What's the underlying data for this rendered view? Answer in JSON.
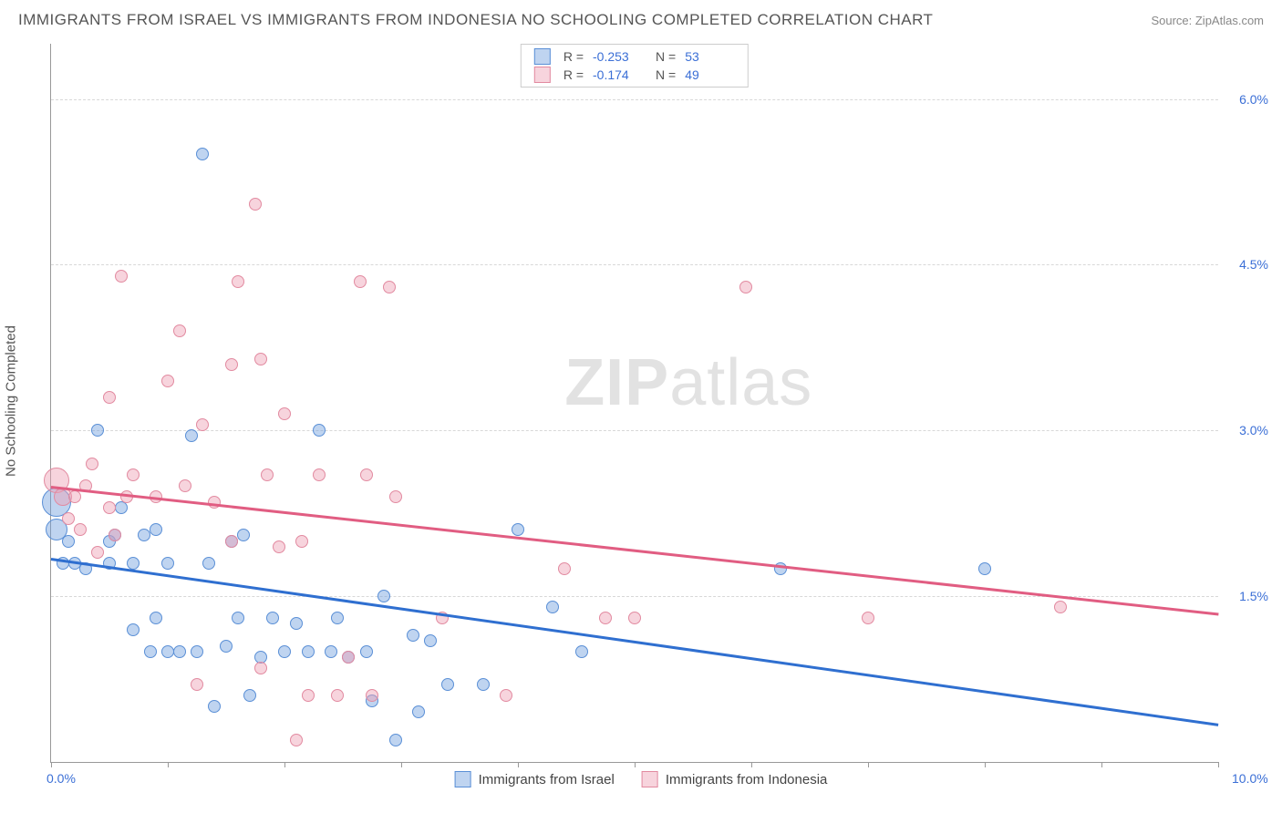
{
  "header": {
    "title": "IMMIGRANTS FROM ISRAEL VS IMMIGRANTS FROM INDONESIA NO SCHOOLING COMPLETED CORRELATION CHART",
    "source": "Source: ZipAtlas.com"
  },
  "chart": {
    "type": "scatter",
    "ylabel": "No Schooling Completed",
    "xlim": [
      0,
      10
    ],
    "ylim": [
      0,
      6.5
    ],
    "x_axis_labels": [
      {
        "value": 0.0,
        "text": "0.0%"
      },
      {
        "value": 10.0,
        "text": "10.0%"
      }
    ],
    "y_gridlines": [
      1.5,
      3.0,
      4.5,
      6.0
    ],
    "y_labels": [
      "1.5%",
      "3.0%",
      "4.5%",
      "6.0%"
    ],
    "x_ticks": [
      0,
      1,
      2,
      3,
      4,
      5,
      6,
      7,
      8,
      9,
      10
    ],
    "background_color": "#ffffff",
    "grid_color": "#d8d8d8",
    "axis_color": "#999999",
    "watermark": {
      "zip": "ZIP",
      "atlas": "atlas"
    },
    "series": [
      {
        "name": "Immigrants from Israel",
        "fill": "rgba(114,160,222,0.45)",
        "stroke": "#5a8fd6",
        "trend_color": "#2f6fd0",
        "R": "-0.253",
        "N": "53",
        "trend": {
          "x1": 0,
          "y1": 1.85,
          "x2": 10,
          "y2": 0.35
        },
        "points": [
          {
            "x": 0.05,
            "y": 2.35,
            "r": 16
          },
          {
            "x": 0.05,
            "y": 2.1,
            "r": 12
          },
          {
            "x": 0.1,
            "y": 1.8,
            "r": 7
          },
          {
            "x": 0.15,
            "y": 2.0,
            "r": 7
          },
          {
            "x": 0.2,
            "y": 1.8,
            "r": 7
          },
          {
            "x": 0.3,
            "y": 1.75,
            "r": 7
          },
          {
            "x": 0.4,
            "y": 3.0,
            "r": 7
          },
          {
            "x": 0.5,
            "y": 2.0,
            "r": 7
          },
          {
            "x": 0.5,
            "y": 1.8,
            "r": 7
          },
          {
            "x": 0.55,
            "y": 2.05,
            "r": 7
          },
          {
            "x": 0.6,
            "y": 2.3,
            "r": 7
          },
          {
            "x": 0.7,
            "y": 1.8,
            "r": 7
          },
          {
            "x": 0.7,
            "y": 1.2,
            "r": 7
          },
          {
            "x": 0.8,
            "y": 2.05,
            "r": 7
          },
          {
            "x": 0.85,
            "y": 1.0,
            "r": 7
          },
          {
            "x": 0.9,
            "y": 1.3,
            "r": 7
          },
          {
            "x": 0.9,
            "y": 2.1,
            "r": 7
          },
          {
            "x": 1.0,
            "y": 1.0,
            "r": 7
          },
          {
            "x": 1.0,
            "y": 1.8,
            "r": 7
          },
          {
            "x": 1.1,
            "y": 1.0,
            "r": 7
          },
          {
            "x": 1.2,
            "y": 2.95,
            "r": 7
          },
          {
            "x": 1.25,
            "y": 1.0,
            "r": 7
          },
          {
            "x": 1.3,
            "y": 5.5,
            "r": 7
          },
          {
            "x": 1.35,
            "y": 1.8,
            "r": 7
          },
          {
            "x": 1.4,
            "y": 0.5,
            "r": 7
          },
          {
            "x": 1.5,
            "y": 1.05,
            "r": 7
          },
          {
            "x": 1.55,
            "y": 2.0,
            "r": 7
          },
          {
            "x": 1.6,
            "y": 1.3,
            "r": 7
          },
          {
            "x": 1.65,
            "y": 2.05,
            "r": 7
          },
          {
            "x": 1.7,
            "y": 0.6,
            "r": 7
          },
          {
            "x": 1.8,
            "y": 0.95,
            "r": 7
          },
          {
            "x": 1.9,
            "y": 1.3,
            "r": 7
          },
          {
            "x": 2.0,
            "y": 1.0,
            "r": 7
          },
          {
            "x": 2.1,
            "y": 1.25,
            "r": 7
          },
          {
            "x": 2.2,
            "y": 1.0,
            "r": 7
          },
          {
            "x": 2.3,
            "y": 3.0,
            "r": 7
          },
          {
            "x": 2.4,
            "y": 1.0,
            "r": 7
          },
          {
            "x": 2.45,
            "y": 1.3,
            "r": 7
          },
          {
            "x": 2.55,
            "y": 0.95,
            "r": 7
          },
          {
            "x": 2.7,
            "y": 1.0,
            "r": 7
          },
          {
            "x": 2.75,
            "y": 0.55,
            "r": 7
          },
          {
            "x": 2.85,
            "y": 1.5,
            "r": 7
          },
          {
            "x": 2.95,
            "y": 0.2,
            "r": 7
          },
          {
            "x": 3.1,
            "y": 1.15,
            "r": 7
          },
          {
            "x": 3.15,
            "y": 0.45,
            "r": 7
          },
          {
            "x": 3.25,
            "y": 1.1,
            "r": 7
          },
          {
            "x": 3.4,
            "y": 0.7,
            "r": 7
          },
          {
            "x": 3.7,
            "y": 0.7,
            "r": 7
          },
          {
            "x": 4.0,
            "y": 2.1,
            "r": 7
          },
          {
            "x": 4.3,
            "y": 1.4,
            "r": 7
          },
          {
            "x": 4.55,
            "y": 1.0,
            "r": 7
          },
          {
            "x": 6.25,
            "y": 1.75,
            "r": 7
          },
          {
            "x": 8.0,
            "y": 1.75,
            "r": 7
          }
        ]
      },
      {
        "name": "Immigrants from Indonesia",
        "fill": "rgba(237,160,179,0.45)",
        "stroke": "#e28aa0",
        "trend_color": "#e15d82",
        "R": "-0.174",
        "N": "49",
        "trend": {
          "x1": 0,
          "y1": 2.5,
          "x2": 10,
          "y2": 1.35
        },
        "points": [
          {
            "x": 0.05,
            "y": 2.55,
            "r": 14
          },
          {
            "x": 0.1,
            "y": 2.4,
            "r": 10
          },
          {
            "x": 0.15,
            "y": 2.2,
            "r": 7
          },
          {
            "x": 0.2,
            "y": 2.4,
            "r": 7
          },
          {
            "x": 0.25,
            "y": 2.1,
            "r": 7
          },
          {
            "x": 0.3,
            "y": 2.5,
            "r": 7
          },
          {
            "x": 0.35,
            "y": 2.7,
            "r": 7
          },
          {
            "x": 0.4,
            "y": 1.9,
            "r": 7
          },
          {
            "x": 0.5,
            "y": 2.3,
            "r": 7
          },
          {
            "x": 0.5,
            "y": 3.3,
            "r": 7
          },
          {
            "x": 0.55,
            "y": 2.05,
            "r": 7
          },
          {
            "x": 0.6,
            "y": 4.4,
            "r": 7
          },
          {
            "x": 0.65,
            "y": 2.4,
            "r": 7
          },
          {
            "x": 0.7,
            "y": 2.6,
            "r": 7
          },
          {
            "x": 0.9,
            "y": 2.4,
            "r": 7
          },
          {
            "x": 1.0,
            "y": 3.45,
            "r": 7
          },
          {
            "x": 1.1,
            "y": 3.9,
            "r": 7
          },
          {
            "x": 1.15,
            "y": 2.5,
            "r": 7
          },
          {
            "x": 1.25,
            "y": 0.7,
            "r": 7
          },
          {
            "x": 1.3,
            "y": 3.05,
            "r": 7
          },
          {
            "x": 1.4,
            "y": 2.35,
            "r": 7
          },
          {
            "x": 1.55,
            "y": 3.6,
            "r": 7
          },
          {
            "x": 1.55,
            "y": 2.0,
            "r": 7
          },
          {
            "x": 1.6,
            "y": 4.35,
            "r": 7
          },
          {
            "x": 1.75,
            "y": 5.05,
            "r": 7
          },
          {
            "x": 1.8,
            "y": 0.85,
            "r": 7
          },
          {
            "x": 1.8,
            "y": 3.65,
            "r": 7
          },
          {
            "x": 1.85,
            "y": 2.6,
            "r": 7
          },
          {
            "x": 1.95,
            "y": 1.95,
            "r": 7
          },
          {
            "x": 2.0,
            "y": 3.15,
            "r": 7
          },
          {
            "x": 2.1,
            "y": 0.2,
            "r": 7
          },
          {
            "x": 2.15,
            "y": 2.0,
            "r": 7
          },
          {
            "x": 2.2,
            "y": 0.6,
            "r": 7
          },
          {
            "x": 2.3,
            "y": 2.6,
            "r": 7
          },
          {
            "x": 2.45,
            "y": 0.6,
            "r": 7
          },
          {
            "x": 2.55,
            "y": 0.95,
            "r": 7
          },
          {
            "x": 2.65,
            "y": 4.35,
            "r": 7
          },
          {
            "x": 2.7,
            "y": 2.6,
            "r": 7
          },
          {
            "x": 2.75,
            "y": 0.6,
            "r": 7
          },
          {
            "x": 2.9,
            "y": 4.3,
            "r": 7
          },
          {
            "x": 2.95,
            "y": 2.4,
            "r": 7
          },
          {
            "x": 3.35,
            "y": 1.3,
            "r": 7
          },
          {
            "x": 3.9,
            "y": 0.6,
            "r": 7
          },
          {
            "x": 4.4,
            "y": 1.75,
            "r": 7
          },
          {
            "x": 4.75,
            "y": 1.3,
            "r": 7
          },
          {
            "x": 5.0,
            "y": 1.3,
            "r": 7
          },
          {
            "x": 5.95,
            "y": 4.3,
            "r": 7
          },
          {
            "x": 7.0,
            "y": 1.3,
            "r": 7
          },
          {
            "x": 8.65,
            "y": 1.4,
            "r": 7
          }
        ]
      }
    ],
    "legend_top": {
      "R_label": "R =",
      "N_label": "N ="
    },
    "legend_bottom": [
      {
        "label": "Immigrants from Israel",
        "fill": "rgba(114,160,222,0.45)",
        "stroke": "#5a8fd6"
      },
      {
        "label": "Immigrants from Indonesia",
        "fill": "rgba(237,160,179,0.45)",
        "stroke": "#e28aa0"
      }
    ]
  }
}
